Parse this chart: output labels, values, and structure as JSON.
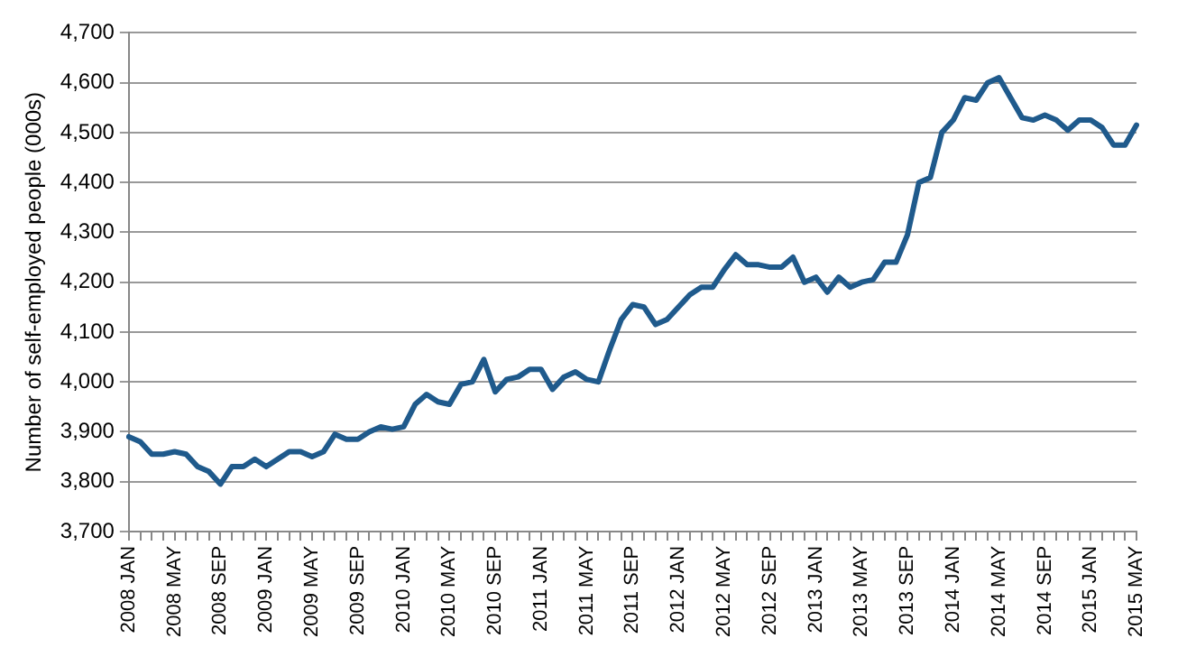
{
  "chart_data": {
    "type": "line",
    "ylabel": "Number of self-employed people (000s)",
    "categories": [
      "2008 JAN",
      null,
      null,
      null,
      "2008 MAY",
      null,
      null,
      null,
      "2008 SEP",
      null,
      null,
      null,
      "2009 JAN",
      null,
      null,
      null,
      "2009 MAY",
      null,
      null,
      null,
      "2009 SEP",
      null,
      null,
      null,
      "2010 JAN",
      null,
      null,
      null,
      "2010 MAY",
      null,
      null,
      null,
      "2010 SEP",
      null,
      null,
      null,
      "2011 JAN",
      null,
      null,
      null,
      "2011 MAY",
      null,
      null,
      null,
      "2011 SEP",
      null,
      null,
      null,
      "2012 JAN",
      null,
      null,
      null,
      "2012 MAY",
      null,
      null,
      null,
      "2012 SEP",
      null,
      null,
      null,
      "2013 JAN",
      null,
      null,
      null,
      "2013 MAY",
      null,
      null,
      null,
      "2013 SEP",
      null,
      null,
      null,
      "2014 JAN",
      null,
      null,
      null,
      "2014 MAY",
      null,
      null,
      null,
      "2014 SEP",
      null,
      null,
      null,
      "2015 JAN",
      null,
      null,
      null,
      "2015 MAY"
    ],
    "series": [
      {
        "color": "#1f5a8c",
        "values": [
          3890,
          3880,
          3855,
          3855,
          3860,
          3855,
          3830,
          3820,
          3795,
          3830,
          3830,
          3845,
          3830,
          3845,
          3860,
          3860,
          3850,
          3860,
          3895,
          3885,
          3885,
          3900,
          3910,
          3905,
          3910,
          3955,
          3975,
          3960,
          3955,
          3995,
          4000,
          4045,
          3980,
          4005,
          4010,
          4025,
          4025,
          3985,
          4010,
          4020,
          4005,
          4000,
          4065,
          4125,
          4155,
          4150,
          4115,
          4125,
          4150,
          4175,
          4190,
          4190,
          4225,
          4255,
          4235,
          4235,
          4230,
          4230,
          4250,
          4200,
          4210,
          4180,
          4210,
          4190,
          4200,
          4205,
          4240,
          4240,
          4295,
          4400,
          4410,
          4500,
          4525,
          4570,
          4565,
          4600,
          4610,
          4570,
          4530,
          4525,
          4535,
          4525,
          4505,
          4525,
          4525,
          4510,
          4475,
          4475,
          4515
        ]
      }
    ],
    "ylim": [
      3700,
      4700
    ],
    "yticks": [
      {
        "value": 3700,
        "label": "3,700"
      },
      {
        "value": 3800,
        "label": "3,800"
      },
      {
        "value": 3900,
        "label": "3,900"
      },
      {
        "value": 4000,
        "label": "4,000"
      },
      {
        "value": 4100,
        "label": "4,100"
      },
      {
        "value": 4200,
        "label": "4,200"
      },
      {
        "value": 4300,
        "label": "4,300"
      },
      {
        "value": 4400,
        "label": "4,400"
      },
      {
        "value": 4500,
        "label": "4,500"
      },
      {
        "value": 4600,
        "label": "4,600"
      },
      {
        "value": 4700,
        "label": "4,700"
      }
    ],
    "grid": "y",
    "legend": false,
    "marker": "none",
    "line_style": "solid"
  }
}
